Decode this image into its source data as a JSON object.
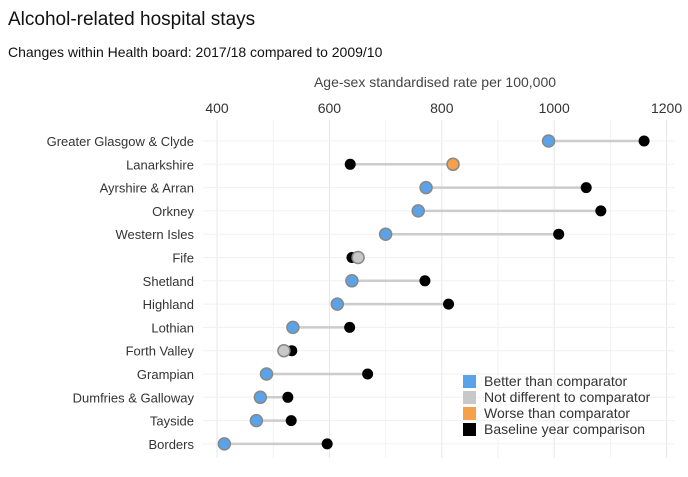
{
  "header": {
    "title": "Alcohol-related hospital stays",
    "subtitle": "Changes within Health board: 2017/18 compared to 2009/10"
  },
  "chart_data": {
    "type": "dumbbell",
    "title": "Alcohol-related hospital stays",
    "subtitle": "Changes within Health board: 2017/18 compared to 2009/10",
    "xlabel": "Age-sex standardised rate per 100,000",
    "axis_position": "top",
    "xlim": [
      375,
      1215
    ],
    "xticks": [
      400,
      600,
      800,
      1000,
      1200
    ],
    "grid": true,
    "legend_position": "bottom-right",
    "colors": {
      "better": "#5aa3e8",
      "nodiff": "#c8c8c8",
      "worse": "#f5a04a",
      "baseline": "#000000",
      "connector": "#cccccc",
      "point_stroke": "#888888"
    },
    "legend": [
      {
        "key": "better",
        "label": "Better than comparator"
      },
      {
        "key": "nodiff",
        "label": "Not different to comparator"
      },
      {
        "key": "worse",
        "label": "Worse than comparator"
      },
      {
        "key": "baseline",
        "label": "Baseline year comparison"
      }
    ],
    "rows": [
      {
        "label": "Greater Glasgow & Clyde",
        "current": 990,
        "baseline": 1160,
        "status": "better"
      },
      {
        "label": "Lanarkshire",
        "current": 820,
        "baseline": 637,
        "status": "worse"
      },
      {
        "label": "Ayrshire & Arran",
        "current": 772,
        "baseline": 1057,
        "status": "better"
      },
      {
        "label": "Orkney",
        "current": 758,
        "baseline": 1083,
        "status": "better"
      },
      {
        "label": "Western Isles",
        "current": 700,
        "baseline": 1008,
        "status": "better"
      },
      {
        "label": "Fife",
        "current": 651,
        "baseline": 640,
        "status": "nodiff"
      },
      {
        "label": "Shetland",
        "current": 640,
        "baseline": 770,
        "status": "better"
      },
      {
        "label": "Highland",
        "current": 614,
        "baseline": 812,
        "status": "better"
      },
      {
        "label": "Lothian",
        "current": 535,
        "baseline": 636,
        "status": "better"
      },
      {
        "label": "Forth Valley",
        "current": 519,
        "baseline": 533,
        "status": "nodiff"
      },
      {
        "label": "Grampian",
        "current": 488,
        "baseline": 668,
        "status": "better"
      },
      {
        "label": "Dumfries & Galloway",
        "current": 477,
        "baseline": 526,
        "status": "better"
      },
      {
        "label": "Tayside",
        "current": 470,
        "baseline": 532,
        "status": "better"
      },
      {
        "label": "Borders",
        "current": 413,
        "baseline": 596,
        "status": "better"
      }
    ]
  }
}
